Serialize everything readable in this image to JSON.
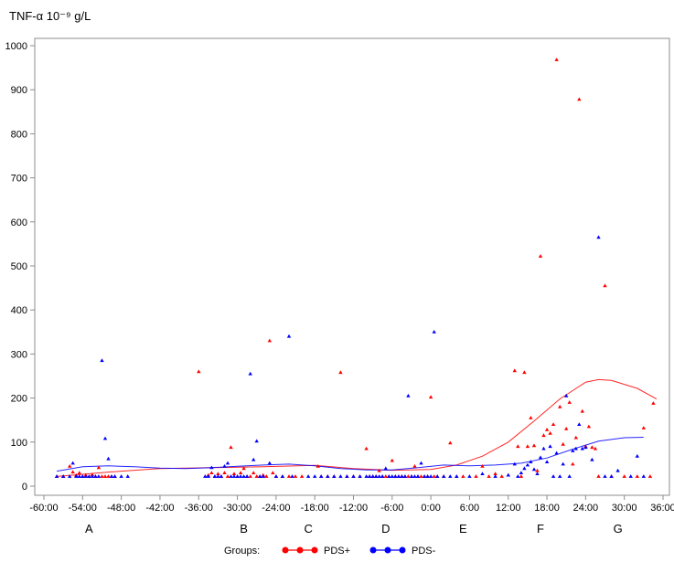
{
  "chart_data": {
    "type": "scatter",
    "title": "TNF-α 10⁻⁹ g/L",
    "ylim": [
      0,
      1000
    ],
    "yticks": [
      0,
      100,
      200,
      300,
      400,
      500,
      600,
      700,
      800,
      900,
      1000
    ],
    "xlim": [
      -60,
      36
    ],
    "xticks": [
      {
        "value": -60,
        "label": "-60:00"
      },
      {
        "value": -54,
        "label": "-54:00"
      },
      {
        "value": -48,
        "label": "-48:00"
      },
      {
        "value": -42,
        "label": "-42:00"
      },
      {
        "value": -36,
        "label": "-36:00"
      },
      {
        "value": -30,
        "label": "-30:00"
      },
      {
        "value": -24,
        "label": "-24:00"
      },
      {
        "value": -18,
        "label": "-18:00"
      },
      {
        "value": -12,
        "label": "-12:00"
      },
      {
        "value": -6,
        "label": "-6:00"
      },
      {
        "value": 0,
        "label": "0:00"
      },
      {
        "value": 6,
        "label": "6:00"
      },
      {
        "value": 12,
        "label": "12:00"
      },
      {
        "value": 18,
        "label": "18:00"
      },
      {
        "value": 24,
        "label": "24:00"
      },
      {
        "value": 30,
        "label": "30:00"
      },
      {
        "value": 36,
        "label": "36:00"
      }
    ],
    "phases": [
      {
        "label": "A",
        "x": -53
      },
      {
        "label": "B",
        "x": -29
      },
      {
        "label": "C",
        "x": -19
      },
      {
        "label": "D",
        "x": -7
      },
      {
        "label": "E",
        "x": 5
      },
      {
        "label": "F",
        "x": 17
      },
      {
        "label": "G",
        "x": 29
      }
    ],
    "grid": false,
    "legend": {
      "placement": "bottom",
      "title": "Groups:"
    },
    "series": [
      {
        "name": "PDS+",
        "color": "#ff0000",
        "points": [
          [
            -58,
            22
          ],
          [
            -57,
            22
          ],
          [
            -56,
            45
          ],
          [
            -55.5,
            32
          ],
          [
            -55,
            25
          ],
          [
            -54.5,
            30
          ],
          [
            -54,
            22
          ],
          [
            -53.5,
            25
          ],
          [
            -53,
            22
          ],
          [
            -52.5,
            26
          ],
          [
            -52,
            22
          ],
          [
            -51.5,
            42
          ],
          [
            -51,
            22
          ],
          [
            -50.5,
            22
          ],
          [
            -50,
            22
          ],
          [
            -49.5,
            22
          ],
          [
            -49,
            22
          ],
          [
            -36,
            260
          ],
          [
            -34.5,
            25
          ],
          [
            -34,
            30
          ],
          [
            -33.5,
            22
          ],
          [
            -33,
            28
          ],
          [
            -32.5,
            22
          ],
          [
            -32,
            30
          ],
          [
            -31.5,
            22
          ],
          [
            -31,
            88
          ],
          [
            -30.5,
            28
          ],
          [
            -30,
            22
          ],
          [
            -29.5,
            30
          ],
          [
            -29,
            40
          ],
          [
            -28.5,
            22
          ],
          [
            -28,
            22
          ],
          [
            -27.5,
            30
          ],
          [
            -27,
            22
          ],
          [
            -26.5,
            22
          ],
          [
            -26,
            25
          ],
          [
            -25.5,
            22
          ],
          [
            -25,
            330
          ],
          [
            -24.5,
            30
          ],
          [
            -24,
            22
          ],
          [
            -23,
            22
          ],
          [
            -22,
            22
          ],
          [
            -21,
            22
          ],
          [
            -20,
            22
          ],
          [
            -17.5,
            45
          ],
          [
            -17,
            22
          ],
          [
            -16,
            22
          ],
          [
            -15,
            22
          ],
          [
            -14,
            258
          ],
          [
            -13,
            22
          ],
          [
            -12,
            22
          ],
          [
            -11,
            22
          ],
          [
            -10,
            85
          ],
          [
            -9.5,
            22
          ],
          [
            -9,
            22
          ],
          [
            -8.5,
            22
          ],
          [
            -8,
            35
          ],
          [
            -7.5,
            22
          ],
          [
            -7,
            22
          ],
          [
            -6.5,
            22
          ],
          [
            -6,
            58
          ],
          [
            -5.5,
            22
          ],
          [
            -5,
            22
          ],
          [
            -4.5,
            22
          ],
          [
            -4,
            22
          ],
          [
            -3.5,
            22
          ],
          [
            -3,
            22
          ],
          [
            -2.5,
            45
          ],
          [
            -2,
            22
          ],
          [
            -1.5,
            22
          ],
          [
            -1,
            22
          ],
          [
            -0.5,
            22
          ],
          [
            0,
            202
          ],
          [
            0.5,
            22
          ],
          [
            1,
            22
          ],
          [
            2,
            22
          ],
          [
            3,
            98
          ],
          [
            4,
            22
          ],
          [
            5,
            22
          ],
          [
            7,
            22
          ],
          [
            8,
            45
          ],
          [
            9,
            22
          ],
          [
            10,
            28
          ],
          [
            11,
            22
          ],
          [
            12,
            25
          ],
          [
            13,
            262
          ],
          [
            13.5,
            90
          ],
          [
            14,
            22
          ],
          [
            14.5,
            258
          ],
          [
            15,
            90
          ],
          [
            15.5,
            155
          ],
          [
            16,
            92
          ],
          [
            16.5,
            35
          ],
          [
            17,
            522
          ],
          [
            17.5,
            115
          ],
          [
            18,
            128
          ],
          [
            18.5,
            120
          ],
          [
            19,
            140
          ],
          [
            19.5,
            968
          ],
          [
            20,
            180
          ],
          [
            20.5,
            95
          ],
          [
            21,
            130
          ],
          [
            21.5,
            190
          ],
          [
            22,
            50
          ],
          [
            22.5,
            110
          ],
          [
            23,
            878
          ],
          [
            23.5,
            170
          ],
          [
            24,
            90
          ],
          [
            24.5,
            135
          ],
          [
            25,
            88
          ],
          [
            25.5,
            85
          ],
          [
            26,
            22
          ],
          [
            27,
            455
          ],
          [
            28,
            22
          ],
          [
            30,
            22
          ],
          [
            32,
            22
          ],
          [
            33,
            132
          ],
          [
            34,
            22
          ],
          [
            34.5,
            188
          ]
        ],
        "trend": [
          [
            -58,
            22
          ],
          [
            -50,
            32
          ],
          [
            -42,
            40
          ],
          [
            -34,
            42
          ],
          [
            -26,
            44
          ],
          [
            -18,
            47
          ],
          [
            -12,
            40
          ],
          [
            -6,
            36
          ],
          [
            0,
            38
          ],
          [
            4,
            48
          ],
          [
            8,
            68
          ],
          [
            12,
            100
          ],
          [
            16,
            148
          ],
          [
            20,
            198
          ],
          [
            24,
            236
          ],
          [
            26,
            242
          ],
          [
            28,
            240
          ],
          [
            32,
            222
          ],
          [
            35,
            198
          ]
        ]
      },
      {
        "name": "PDS-",
        "color": "#0000ff",
        "points": [
          [
            -58,
            22
          ],
          [
            -57,
            22
          ],
          [
            -56,
            22
          ],
          [
            -55.5,
            52
          ],
          [
            -55,
            22
          ],
          [
            -54.5,
            22
          ],
          [
            -54,
            22
          ],
          [
            -53.5,
            22
          ],
          [
            -53,
            22
          ],
          [
            -52.5,
            22
          ],
          [
            -52,
            22
          ],
          [
            -51.5,
            22
          ],
          [
            -51,
            285
          ],
          [
            -50.5,
            108
          ],
          [
            -50,
            62
          ],
          [
            -49.5,
            22
          ],
          [
            -49,
            22
          ],
          [
            -48,
            22
          ],
          [
            -47,
            22
          ],
          [
            -35,
            22
          ],
          [
            -34.5,
            22
          ],
          [
            -34,
            42
          ],
          [
            -33.5,
            22
          ],
          [
            -33,
            22
          ],
          [
            -32.5,
            22
          ],
          [
            -32,
            45
          ],
          [
            -31.5,
            52
          ],
          [
            -31,
            22
          ],
          [
            -30.5,
            22
          ],
          [
            -30,
            22
          ],
          [
            -29.5,
            22
          ],
          [
            -29,
            22
          ],
          [
            -28.5,
            22
          ],
          [
            -28,
            255
          ],
          [
            -27.5,
            60
          ],
          [
            -27,
            102
          ],
          [
            -26.5,
            22
          ],
          [
            -26,
            22
          ],
          [
            -25,
            52
          ],
          [
            -24,
            22
          ],
          [
            -23,
            22
          ],
          [
            -22,
            340
          ],
          [
            -21.5,
            22
          ],
          [
            -19,
            22
          ],
          [
            -18,
            22
          ],
          [
            -17,
            22
          ],
          [
            -16,
            22
          ],
          [
            -15,
            22
          ],
          [
            -14,
            22
          ],
          [
            -13,
            22
          ],
          [
            -12,
            22
          ],
          [
            -11,
            22
          ],
          [
            -10,
            22
          ],
          [
            -9.5,
            22
          ],
          [
            -9,
            22
          ],
          [
            -8.5,
            22
          ],
          [
            -8,
            22
          ],
          [
            -7.5,
            22
          ],
          [
            -7,
            40
          ],
          [
            -6.5,
            22
          ],
          [
            -6,
            22
          ],
          [
            -5.5,
            22
          ],
          [
            -5,
            22
          ],
          [
            -4.5,
            22
          ],
          [
            -4,
            22
          ],
          [
            -3.5,
            205
          ],
          [
            -3,
            22
          ],
          [
            -2.5,
            22
          ],
          [
            -2,
            22
          ],
          [
            -1.5,
            52
          ],
          [
            -1,
            22
          ],
          [
            -0.5,
            22
          ],
          [
            0,
            22
          ],
          [
            0.5,
            350
          ],
          [
            1,
            22
          ],
          [
            2,
            22
          ],
          [
            3,
            22
          ],
          [
            4,
            22
          ],
          [
            6,
            22
          ],
          [
            8,
            28
          ],
          [
            10,
            22
          ],
          [
            12,
            25
          ],
          [
            13,
            50
          ],
          [
            13.5,
            22
          ],
          [
            14,
            30
          ],
          [
            14.5,
            40
          ],
          [
            15,
            48
          ],
          [
            15.5,
            55
          ],
          [
            16,
            38
          ],
          [
            16.5,
            28
          ],
          [
            17,
            65
          ],
          [
            17.5,
            85
          ],
          [
            18,
            55
          ],
          [
            18.5,
            90
          ],
          [
            19,
            22
          ],
          [
            19.5,
            75
          ],
          [
            20,
            22
          ],
          [
            20.5,
            50
          ],
          [
            21,
            205
          ],
          [
            21.5,
            22
          ],
          [
            22,
            80
          ],
          [
            22.5,
            85
          ],
          [
            23,
            140
          ],
          [
            23.5,
            85
          ],
          [
            24,
            88
          ],
          [
            25,
            60
          ],
          [
            26,
            565
          ],
          [
            27,
            22
          ],
          [
            28,
            22
          ],
          [
            29,
            35
          ],
          [
            31,
            22
          ],
          [
            32,
            68
          ],
          [
            33,
            22
          ]
        ],
        "trend": [
          [
            -58,
            34
          ],
          [
            -54,
            44
          ],
          [
            -50,
            46
          ],
          [
            -46,
            44
          ],
          [
            -42,
            41
          ],
          [
            -38,
            40
          ],
          [
            -34,
            42
          ],
          [
            -30,
            45
          ],
          [
            -26,
            48
          ],
          [
            -22,
            50
          ],
          [
            -18,
            46
          ],
          [
            -14,
            40
          ],
          [
            -10,
            37
          ],
          [
            -6,
            37
          ],
          [
            -2,
            42
          ],
          [
            2,
            48
          ],
          [
            6,
            46
          ],
          [
            10,
            48
          ],
          [
            14,
            52
          ],
          [
            18,
            64
          ],
          [
            22,
            84
          ],
          [
            26,
            102
          ],
          [
            30,
            110
          ],
          [
            33,
            111
          ]
        ]
      }
    ]
  }
}
